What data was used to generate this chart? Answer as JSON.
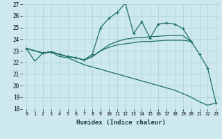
{
  "xlabel": "Humidex (Indice chaleur)",
  "bg_color": "#cde8ee",
  "grid_color": "#b0d5dc",
  "line_color": "#1a6e64",
  "xlim": [
    -0.5,
    23.5
  ],
  "ylim": [
    18,
    27
  ],
  "yticks": [
    18,
    19,
    20,
    21,
    22,
    23,
    24,
    25,
    26,
    27
  ],
  "xticks": [
    0,
    1,
    2,
    3,
    4,
    5,
    6,
    7,
    8,
    9,
    10,
    11,
    12,
    13,
    14,
    15,
    16,
    17,
    18,
    19,
    20,
    21,
    22,
    23
  ],
  "series_main": {
    "x": [
      0,
      2,
      3,
      4,
      5,
      6,
      7,
      8,
      9,
      10,
      11,
      12,
      13,
      14,
      15,
      16,
      17,
      18,
      19,
      20,
      21,
      22,
      23
    ],
    "y": [
      23.2,
      22.8,
      22.9,
      22.7,
      22.5,
      22.4,
      22.2,
      22.7,
      25.0,
      25.8,
      26.3,
      27.1,
      24.5,
      25.5,
      24.1,
      25.3,
      25.4,
      25.3,
      24.9,
      23.8,
      22.7,
      21.5,
      18.5
    ]
  },
  "series_trend1": {
    "x": [
      0,
      2,
      3,
      4,
      5,
      6,
      7,
      8,
      9,
      10,
      11,
      12,
      13,
      14,
      15,
      16,
      17,
      18,
      19,
      20
    ],
    "y": [
      23.2,
      22.8,
      22.9,
      22.7,
      22.5,
      22.4,
      22.2,
      22.5,
      23.0,
      23.3,
      23.5,
      23.6,
      23.7,
      23.8,
      23.8,
      23.85,
      23.9,
      23.9,
      23.9,
      23.8
    ]
  },
  "series_trend2": {
    "x": [
      0,
      2,
      3,
      4,
      5,
      6,
      7,
      8,
      9,
      10,
      11,
      12,
      13,
      14,
      15,
      16,
      17,
      18,
      19,
      20
    ],
    "y": [
      23.2,
      22.8,
      22.9,
      22.7,
      22.5,
      22.4,
      22.2,
      22.5,
      23.0,
      23.5,
      23.8,
      24.0,
      24.1,
      24.15,
      24.2,
      24.25,
      24.3,
      24.3,
      24.3,
      23.8
    ]
  },
  "series_declining": {
    "x": [
      0,
      1,
      2,
      3,
      4,
      5,
      6,
      7,
      8,
      9,
      10,
      11,
      12,
      13,
      14,
      15,
      16,
      17,
      18,
      19,
      20,
      21,
      22,
      23
    ],
    "y": [
      23.2,
      22.1,
      22.8,
      22.9,
      22.5,
      22.4,
      22.1,
      21.8,
      21.6,
      21.4,
      21.2,
      21.0,
      20.8,
      20.6,
      20.4,
      20.2,
      20.0,
      19.8,
      19.6,
      19.3,
      19.0,
      18.6,
      18.3,
      18.5
    ]
  }
}
